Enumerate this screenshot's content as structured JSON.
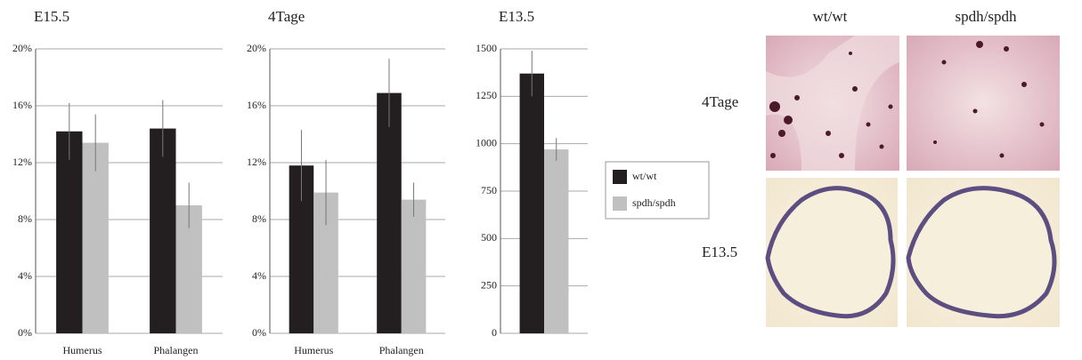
{
  "chart_data": [
    {
      "type": "bar",
      "title": "E15.5",
      "categories": [
        "Humerus",
        "Phalangen"
      ],
      "series": [
        {
          "name": "wt/wt",
          "color": "#231f20",
          "values": [
            14.2,
            14.4
          ],
          "errors": [
            2.0,
            2.0
          ]
        },
        {
          "name": "spdh/spdh",
          "color": "#c0c0c0",
          "values": [
            13.4,
            9.0
          ],
          "errors": [
            2.0,
            1.6
          ]
        }
      ],
      "ylim": [
        0,
        20
      ],
      "yticks": [
        {
          "value": 0,
          "label": "0%"
        },
        {
          "value": 4,
          "label": "4%"
        },
        {
          "value": 8,
          "label": "8%"
        },
        {
          "value": 12,
          "label": "12%"
        },
        {
          "value": 16,
          "label": "16%"
        },
        {
          "value": 20,
          "label": "20%"
        }
      ],
      "grid": true
    },
    {
      "type": "bar",
      "title": "4Tage",
      "categories": [
        "Humerus",
        "Phalangen"
      ],
      "series": [
        {
          "name": "wt/wt",
          "color": "#231f20",
          "values": [
            11.8,
            16.9
          ],
          "errors": [
            2.5,
            2.4
          ]
        },
        {
          "name": "spdh/spdh",
          "color": "#c0c0c0",
          "values": [
            9.9,
            9.4
          ],
          "errors": [
            2.3,
            1.2
          ]
        }
      ],
      "ylim": [
        0,
        20
      ],
      "yticks": [
        {
          "value": 0,
          "label": "0%"
        },
        {
          "value": 4,
          "label": "4%"
        },
        {
          "value": 8,
          "label": "8%"
        },
        {
          "value": 12,
          "label": "12%"
        },
        {
          "value": 16,
          "label": "16%"
        },
        {
          "value": 20,
          "label": "20%"
        }
      ],
      "grid": true
    },
    {
      "type": "bar",
      "title": "E13.5",
      "categories": [
        null
      ],
      "series": [
        {
          "name": "wt/wt",
          "color": "#231f20",
          "values": [
            1370
          ],
          "errors": [
            120
          ]
        },
        {
          "name": "spdh/spdh",
          "color": "#c0c0c0",
          "values": [
            970
          ],
          "errors": [
            60
          ]
        }
      ],
      "ylim": [
        0,
        1500
      ],
      "yticks": [
        0,
        250,
        500,
        750,
        1000,
        1250,
        1500
      ],
      "grid": true,
      "legend": "right"
    }
  ],
  "micrographs": {
    "columns": [
      "wt/wt",
      "spdh/spdh"
    ],
    "rows": [
      "4Tage",
      "E13.5"
    ]
  }
}
